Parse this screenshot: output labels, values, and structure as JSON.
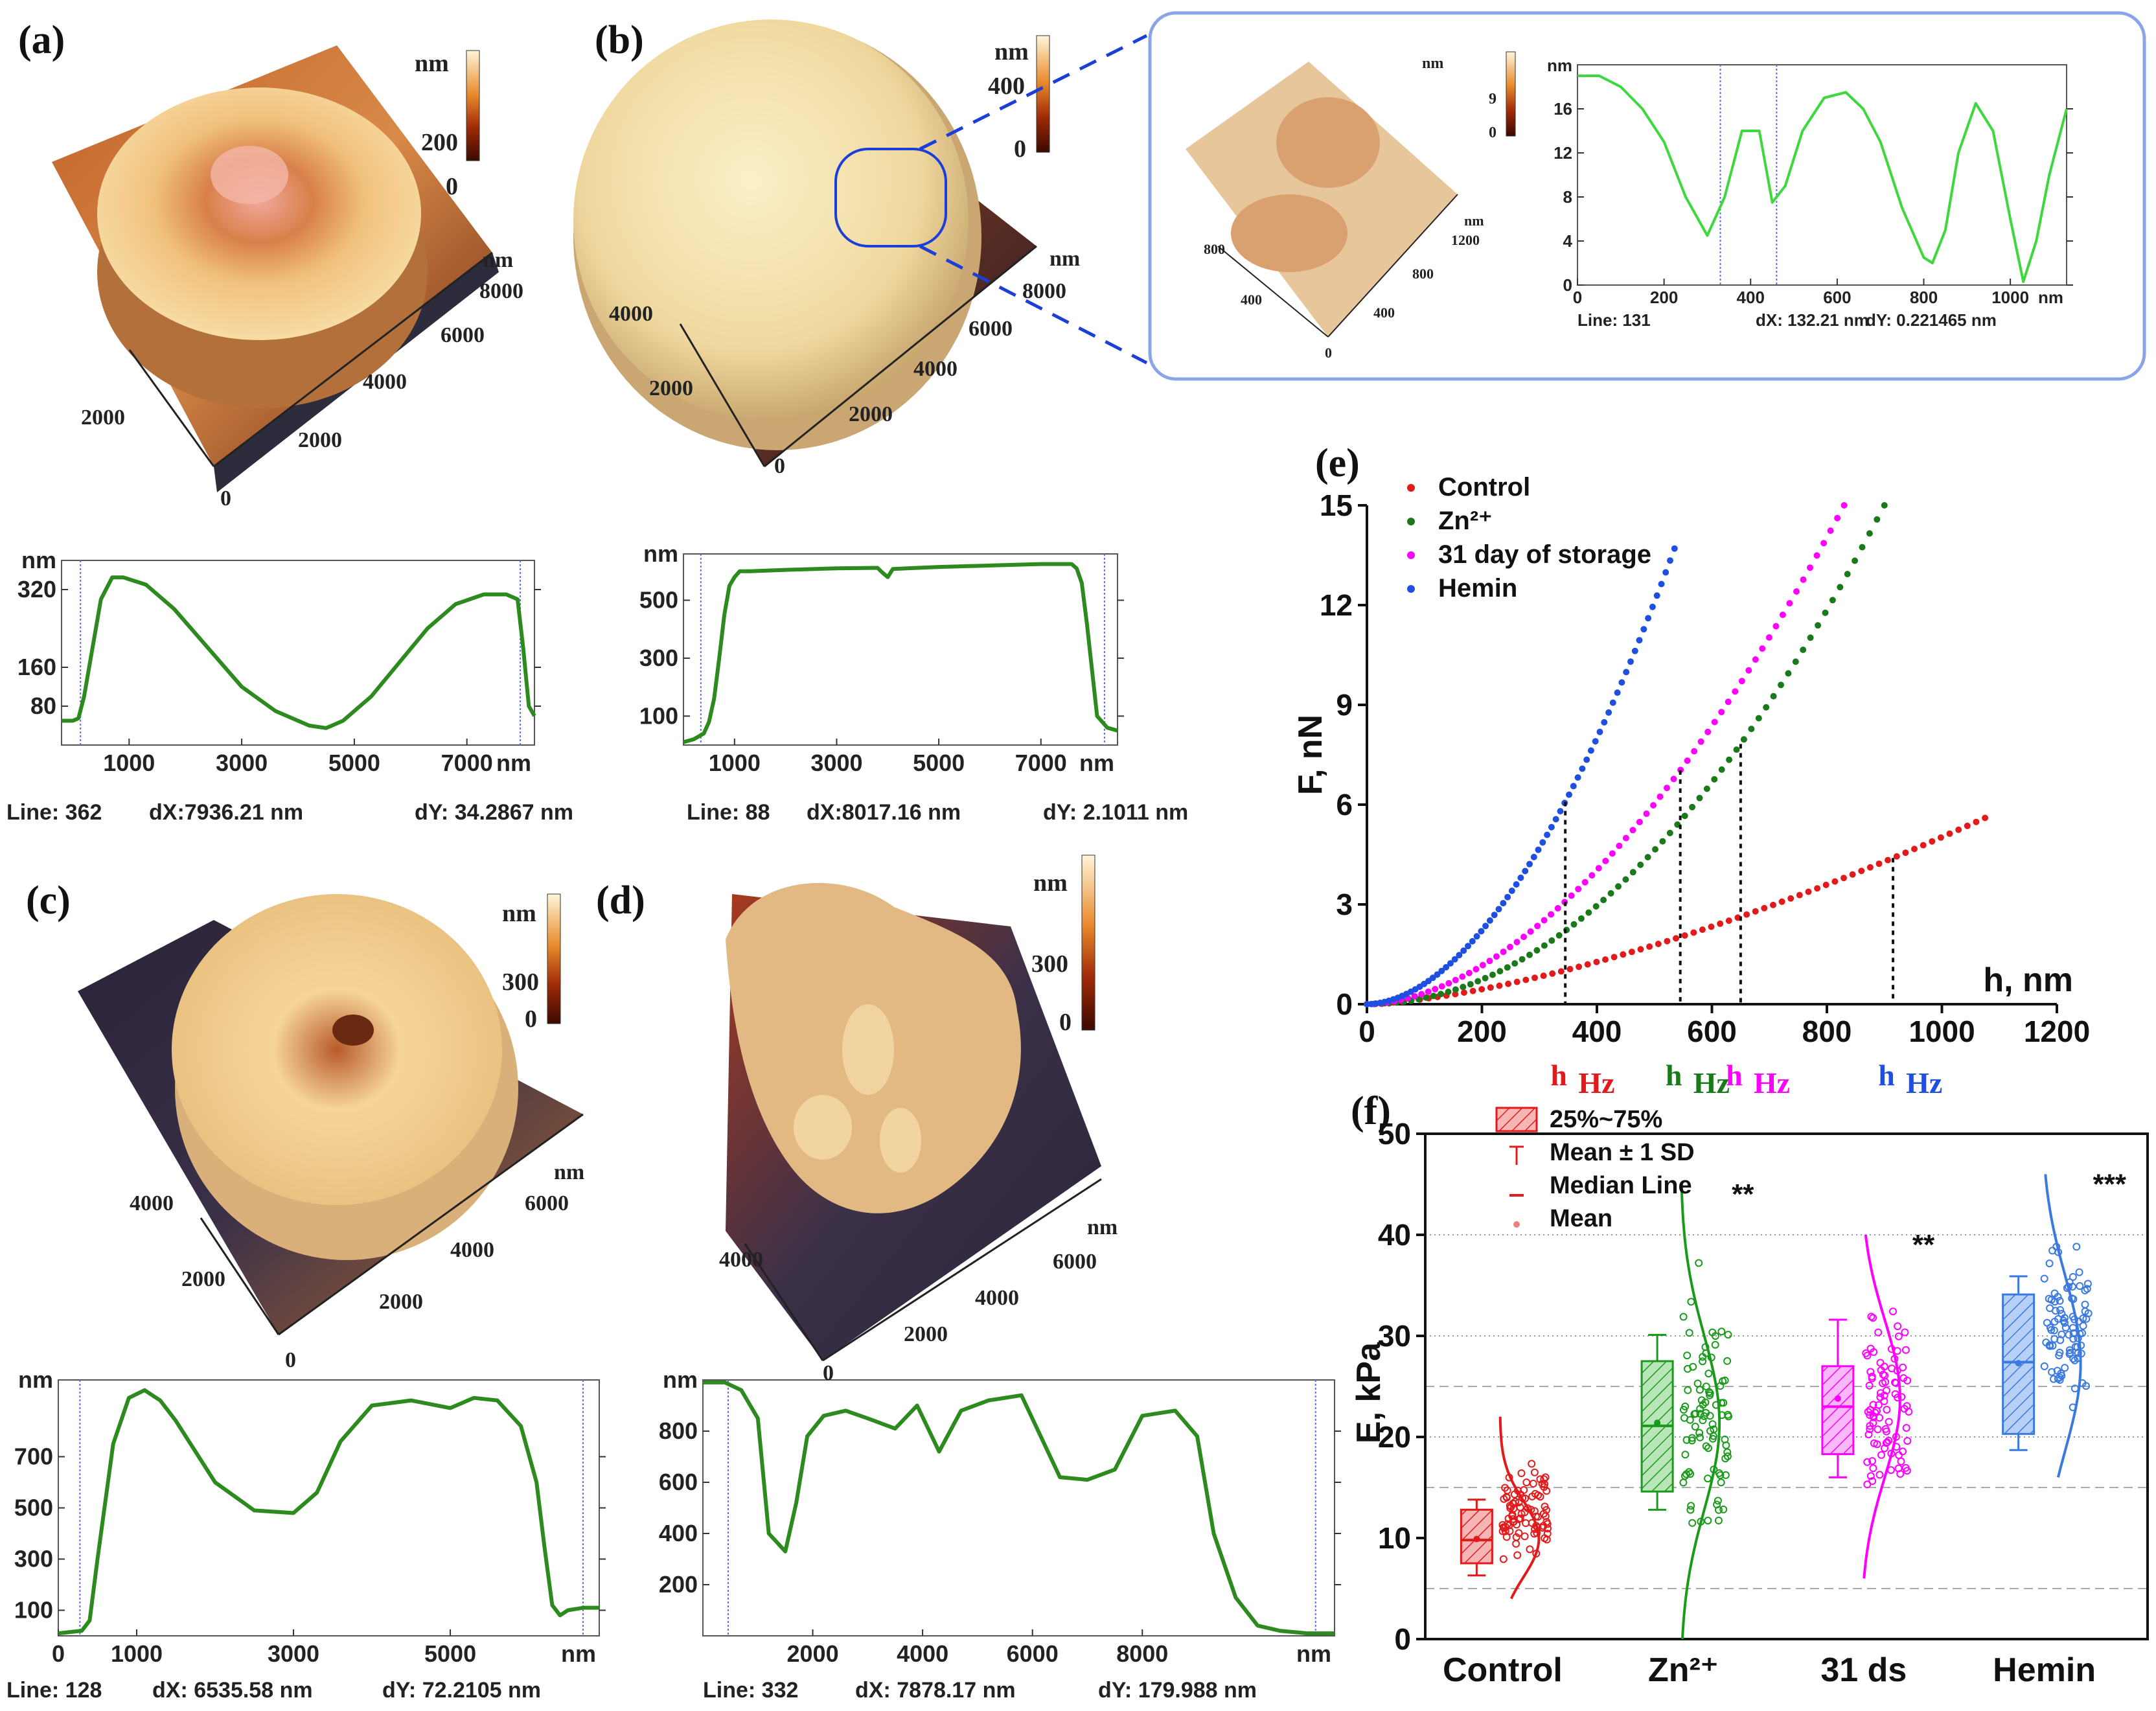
{
  "panels": {
    "a": {
      "letter": "(a)",
      "colorbar": {
        "unit": "nm",
        "ticks": [
          "200",
          "0"
        ]
      },
      "axis_ticks_right": [
        "8000",
        "6000",
        "4000",
        "2000"
      ],
      "axis_ticks_left": [
        "2000",
        "0"
      ],
      "axis_unit": "nm"
    },
    "b": {
      "letter": "(b)",
      "colorbar": {
        "unit": "nm",
        "ticks": [
          "400",
          "0"
        ]
      },
      "axis_ticks_right": [
        "8000",
        "6000",
        "4000",
        "2000"
      ],
      "axis_ticks_left": [
        "4000",
        "2000",
        "0"
      ],
      "axis_unit": "nm"
    },
    "inset": {
      "colorbar": {
        "unit": "nm",
        "ticks": [
          "9",
          "0"
        ]
      },
      "axis_unit": "nm",
      "axis_ticks_right": [
        "1200",
        "800",
        "400",
        "0"
      ],
      "axis_ticks_left": [
        "800",
        "400"
      ]
    },
    "c": {
      "letter": "(c)",
      "colorbar": {
        "unit": "nm",
        "ticks": [
          "300",
          "0"
        ]
      },
      "axis_ticks_right": [
        "6000",
        "4000",
        "2000",
        "0"
      ],
      "axis_ticks_left": [
        "4000",
        "2000"
      ],
      "axis_unit": "nm"
    },
    "d": {
      "letter": "(d)",
      "colorbar": {
        "unit": "nm",
        "ticks": [
          "300",
          "0"
        ]
      },
      "axis_ticks_right": [
        "6000",
        "4000",
        "2000",
        "0"
      ],
      "axis_ticks_left": [
        "4000"
      ],
      "axis_unit": "nm"
    },
    "e": {
      "letter": "(e)"
    },
    "f": {
      "letter": "(f)"
    }
  },
  "chart_data": [
    {
      "id": "profile-a",
      "type": "line",
      "y_unit": "nm",
      "y_ticks": [
        80,
        160,
        320
      ],
      "x_ticks": [
        1000,
        3000,
        5000,
        7000
      ],
      "x_unit": "nm",
      "xlim": [
        -200,
        8200
      ],
      "ylim": [
        0,
        380
      ],
      "x": [
        -200,
        0,
        100,
        200,
        350,
        500,
        700,
        900,
        1300,
        1800,
        2400,
        3000,
        3600,
        4200,
        4500,
        4800,
        5300,
        5800,
        6300,
        6800,
        7300,
        7700,
        7900,
        8000,
        8100,
        8200
      ],
      "y": [
        50,
        50,
        55,
        100,
        200,
        300,
        345,
        345,
        330,
        280,
        200,
        120,
        70,
        40,
        35,
        50,
        100,
        170,
        240,
        290,
        310,
        310,
        300,
        200,
        80,
        60
      ],
      "info": {
        "line": "Line: 362",
        "dx": "dX:7936.21  nm",
        "dy": "dY: 34.2867 nm"
      }
    },
    {
      "id": "profile-b",
      "type": "line",
      "y_unit": "nm",
      "y_ticks": [
        100,
        300,
        500
      ],
      "x_ticks": [
        1000,
        3000,
        5000,
        7000
      ],
      "x_unit": "nm",
      "xlim": [
        0,
        8500
      ],
      "ylim": [
        0,
        660
      ],
      "x": [
        0,
        200,
        400,
        500,
        600,
        700,
        800,
        900,
        1000,
        1100,
        1300,
        2000,
        3000,
        3800,
        3900,
        4000,
        4100,
        5000,
        6000,
        7000,
        7600,
        7700,
        7800,
        7900,
        8000,
        8100,
        8300,
        8500
      ],
      "y": [
        10,
        20,
        40,
        80,
        160,
        300,
        450,
        550,
        580,
        600,
        600,
        605,
        610,
        612,
        595,
        580,
        608,
        615,
        620,
        625,
        625,
        610,
        560,
        420,
        260,
        100,
        60,
        50
      ],
      "info": {
        "line": "Line: 88",
        "dx": "dX:8017.16  nm",
        "dy": "dY: 2.1011 nm"
      }
    },
    {
      "id": "profile-inset",
      "type": "line",
      "y_unit": "nm",
      "y_ticks": [
        0,
        4,
        8,
        12,
        16
      ],
      "x_ticks": [
        0,
        200,
        400,
        600,
        800,
        1000
      ],
      "x_unit": "nm",
      "xlim": [
        0,
        1130
      ],
      "ylim": [
        0,
        20
      ],
      "x": [
        0,
        50,
        100,
        150,
        200,
        250,
        300,
        340,
        380,
        420,
        450,
        480,
        520,
        570,
        620,
        660,
        700,
        750,
        800,
        820,
        850,
        880,
        920,
        960,
        1000,
        1030,
        1060,
        1090,
        1130
      ],
      "y": [
        19,
        19,
        18,
        16,
        13,
        8,
        4.5,
        8,
        14,
        14,
        7.5,
        9,
        14,
        17,
        17.5,
        16,
        13,
        7,
        2.5,
        2,
        5,
        12,
        16.5,
        14,
        6,
        0.3,
        4,
        10,
        16
      ],
      "info": {
        "line": "Line: 131",
        "dx": "dX: 132.21 nm",
        "dy": "dY: 0.221465 nm"
      }
    },
    {
      "id": "profile-c",
      "type": "line",
      "y_unit": "nm",
      "y_ticks": [
        100,
        300,
        500,
        700
      ],
      "x_ticks": [
        0,
        1000,
        3000,
        5000
      ],
      "x_unit": "nm",
      "xlim": [
        0,
        6900
      ],
      "ylim": [
        0,
        1000
      ],
      "x": [
        0,
        300,
        400,
        500,
        700,
        900,
        1100,
        1300,
        1500,
        2000,
        2500,
        3000,
        3300,
        3600,
        4000,
        4500,
        5000,
        5300,
        5600,
        5900,
        6100,
        6200,
        6300,
        6400,
        6500,
        6700,
        6900
      ],
      "y": [
        10,
        20,
        60,
        300,
        750,
        930,
        960,
        920,
        840,
        600,
        490,
        480,
        560,
        760,
        900,
        920,
        890,
        930,
        920,
        820,
        600,
        350,
        120,
        80,
        100,
        110,
        110
      ],
      "info": {
        "line": "Line: 128",
        "dx": "dX: 6535.58  nm",
        "dy": "dY: 72.2105 nm"
      }
    },
    {
      "id": "profile-d",
      "type": "line",
      "y_unit": "nm",
      "y_ticks": [
        200,
        400,
        600,
        800
      ],
      "x_ticks": [
        2000,
        4000,
        6000,
        8000
      ],
      "x_unit": "nm",
      "xlim": [
        0,
        11500
      ],
      "ylim": [
        0,
        1000
      ],
      "x": [
        0,
        400,
        700,
        1000,
        1200,
        1500,
        1700,
        1900,
        2200,
        2600,
        3000,
        3500,
        3900,
        4300,
        4700,
        5200,
        5800,
        6500,
        7000,
        7500,
        8000,
        8600,
        9000,
        9300,
        9700,
        10100,
        10500,
        11000,
        11500
      ],
      "y": [
        990,
        990,
        960,
        850,
        400,
        330,
        520,
        780,
        860,
        880,
        850,
        810,
        900,
        720,
        880,
        920,
        940,
        620,
        610,
        650,
        860,
        880,
        780,
        400,
        150,
        40,
        20,
        10,
        10
      ],
      "info": {
        "line": "Line: 332",
        "dx": "dX: 7878.17  nm",
        "dy": "dY: 179.988 nm"
      }
    },
    {
      "id": "force-indentation",
      "type": "scatter",
      "xlabel": "h, nm",
      "ylabel": "F, nN",
      "xlim": [
        0,
        1200
      ],
      "ylim": [
        0,
        15
      ],
      "x_ticks": [
        0,
        200,
        400,
        600,
        800,
        1000,
        1200
      ],
      "y_ticks": [
        0,
        3,
        6,
        9,
        12,
        15
      ],
      "legend_position": "top-left",
      "series": [
        {
          "name": "Control",
          "color": "#e31a1c",
          "h_max": 1075,
          "F_max": 5.6,
          "exponent": 1.5,
          "h_Hz": 915
        },
        {
          "name": "Zn²⁺",
          "color": "#1a7a1a",
          "h_max": 900,
          "F_max": 15,
          "exponent": 2.0,
          "h_Hz": 650
        },
        {
          "name": "31 day of storage",
          "color": "#ff00ff",
          "h_max": 830,
          "F_max": 15,
          "exponent": 1.8,
          "h_Hz": 545
        },
        {
          "name": "Hemin",
          "color": "#1f4fe0",
          "h_max": 535,
          "F_max": 13.7,
          "exponent": 1.85,
          "h_Hz": 345
        }
      ],
      "h_markers": [
        {
          "label": "h",
          "sub": "Hz",
          "color": "#1f4fe0"
        },
        {
          "label": "h",
          "sub": "Hz",
          "color": "#ff00ff"
        },
        {
          "label": "h",
          "sub": "Hz",
          "color": "#1a7a1a"
        },
        {
          "label": "h",
          "sub": "Hz",
          "color": "#e31a1c"
        }
      ]
    },
    {
      "id": "youngs-modulus",
      "type": "box",
      "ylabel": "E, kPa",
      "ylim": [
        0,
        50
      ],
      "y_ticks": [
        0,
        10,
        20,
        30,
        40,
        50
      ],
      "categories": [
        "Control",
        "Zn²⁺",
        "31 ds",
        "Hemin"
      ],
      "legend": [
        "25%~75%",
        "Mean ± 1 SD",
        "Median Line",
        "Mean"
      ],
      "legend_position": "top-left",
      "groups": [
        {
          "name": "Control",
          "color": "#e31a1c",
          "q1": 7.5,
          "median": 9.8,
          "q3": 12.8,
          "mean": 9.9,
          "sd_low": 6.3,
          "sd_high": 13.8,
          "range": [
            4,
            22
          ],
          "significance": ""
        },
        {
          "name": "Zn²⁺",
          "color": "#1a9a1a",
          "q1": 14.6,
          "median": 21.1,
          "q3": 27.5,
          "mean": 21.4,
          "sd_low": 12.8,
          "sd_high": 30.1,
          "range": [
            0,
            45
          ],
          "significance": "**"
        },
        {
          "name": "31 ds",
          "color": "#ff00ff",
          "q1": 18.3,
          "median": 23.0,
          "q3": 27.0,
          "mean": 23.8,
          "sd_low": 16.0,
          "sd_high": 31.6,
          "range": [
            6,
            40
          ],
          "significance": "**"
        },
        {
          "name": "Hemin",
          "color": "#3a7ae0",
          "q1": 20.3,
          "median": 27.4,
          "q3": 34.1,
          "mean": 27.3,
          "sd_low": 18.7,
          "sd_high": 35.9,
          "range": [
            16,
            46
          ],
          "significance": "***"
        }
      ]
    }
  ]
}
